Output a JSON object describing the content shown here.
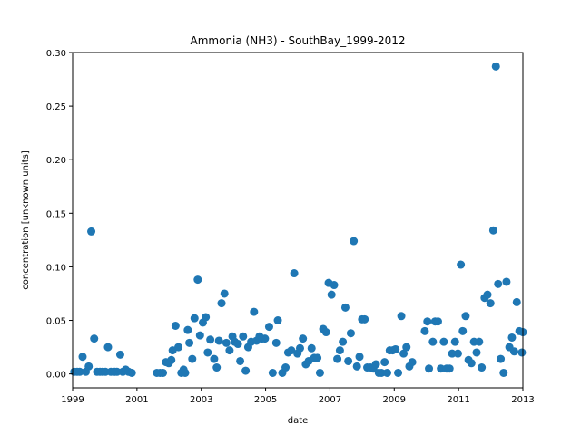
{
  "chart_data": {
    "type": "scatter",
    "title": "Ammonia (NH3) - SouthBay_1999-2012",
    "xlabel": "date",
    "ylabel": "concentration [unknown units]",
    "xlim": [
      1999,
      2013
    ],
    "ylim": [
      -0.013,
      0.3
    ],
    "xticks": [
      1999,
      2001,
      2003,
      2005,
      2007,
      2009,
      2011,
      2013
    ],
    "yticks": [
      0.0,
      0.05,
      0.1,
      0.15,
      0.2,
      0.25,
      0.3
    ],
    "ytick_labels": [
      "0.00",
      "0.05",
      "0.10",
      "0.15",
      "0.20",
      "0.25",
      "0.30"
    ],
    "grid": false,
    "legend": "none",
    "marker_color": "#1f77b4",
    "points": [
      [
        1999.05,
        0.002
      ],
      [
        1999.14,
        0.002
      ],
      [
        1999.22,
        0.002
      ],
      [
        1999.31,
        0.016
      ],
      [
        1999.41,
        0.002
      ],
      [
        1999.5,
        0.007
      ],
      [
        1999.58,
        0.133
      ],
      [
        1999.67,
        0.033
      ],
      [
        1999.76,
        0.002
      ],
      [
        1999.85,
        0.002
      ],
      [
        1999.93,
        0.002
      ],
      [
        2000.02,
        0.002
      ],
      [
        2000.1,
        0.025
      ],
      [
        2000.19,
        0.002
      ],
      [
        2000.3,
        0.002
      ],
      [
        2000.38,
        0.002
      ],
      [
        2000.48,
        0.018
      ],
      [
        2000.56,
        0.002
      ],
      [
        2000.65,
        0.004
      ],
      [
        2000.74,
        0.002
      ],
      [
        2000.84,
        0.001
      ],
      [
        2001.62,
        0.001
      ],
      [
        2001.72,
        0.001
      ],
      [
        2001.81,
        0.001
      ],
      [
        2001.9,
        0.011
      ],
      [
        2001.99,
        0.01
      ],
      [
        2002.07,
        0.013
      ],
      [
        2002.11,
        0.022
      ],
      [
        2002.2,
        0.045
      ],
      [
        2002.29,
        0.025
      ],
      [
        2002.38,
        0.001
      ],
      [
        2002.45,
        0.004
      ],
      [
        2002.5,
        0.001
      ],
      [
        2002.58,
        0.041
      ],
      [
        2002.63,
        0.029
      ],
      [
        2002.72,
        0.014
      ],
      [
        2002.79,
        0.052
      ],
      [
        2002.89,
        0.088
      ],
      [
        2002.96,
        0.036
      ],
      [
        2003.05,
        0.048
      ],
      [
        2003.14,
        0.053
      ],
      [
        2003.2,
        0.02
      ],
      [
        2003.28,
        0.032
      ],
      [
        2003.4,
        0.014
      ],
      [
        2003.48,
        0.006
      ],
      [
        2003.55,
        0.031
      ],
      [
        2003.63,
        0.066
      ],
      [
        2003.72,
        0.075
      ],
      [
        2003.78,
        0.029
      ],
      [
        2003.88,
        0.022
      ],
      [
        2003.97,
        0.035
      ],
      [
        2004.04,
        0.03
      ],
      [
        2004.14,
        0.028
      ],
      [
        2004.21,
        0.012
      ],
      [
        2004.3,
        0.035
      ],
      [
        2004.38,
        0.003
      ],
      [
        2004.46,
        0.025
      ],
      [
        2004.55,
        0.03
      ],
      [
        2004.64,
        0.058
      ],
      [
        2004.72,
        0.031
      ],
      [
        2004.81,
        0.035
      ],
      [
        2004.89,
        0.033
      ],
      [
        2004.98,
        0.033
      ],
      [
        2005.11,
        0.044
      ],
      [
        2005.22,
        0.001
      ],
      [
        2005.33,
        0.029
      ],
      [
        2005.38,
        0.05
      ],
      [
        2005.52,
        0.001
      ],
      [
        2005.62,
        0.006
      ],
      [
        2005.7,
        0.02
      ],
      [
        2005.8,
        0.022
      ],
      [
        2005.89,
        0.094
      ],
      [
        2005.99,
        0.019
      ],
      [
        2006.07,
        0.024
      ],
      [
        2006.16,
        0.033
      ],
      [
        2006.25,
        0.009
      ],
      [
        2006.34,
        0.012
      ],
      [
        2006.43,
        0.024
      ],
      [
        2006.51,
        0.015
      ],
      [
        2006.61,
        0.015
      ],
      [
        2006.69,
        0.001
      ],
      [
        2006.79,
        0.042
      ],
      [
        2006.88,
        0.039
      ],
      [
        2006.96,
        0.085
      ],
      [
        2007.05,
        0.074
      ],
      [
        2007.13,
        0.083
      ],
      [
        2007.23,
        0.014
      ],
      [
        2007.31,
        0.022
      ],
      [
        2007.4,
        0.03
      ],
      [
        2007.48,
        0.062
      ],
      [
        2007.57,
        0.012
      ],
      [
        2007.65,
        0.038
      ],
      [
        2007.74,
        0.124
      ],
      [
        2007.84,
        0.007
      ],
      [
        2007.92,
        0.016
      ],
      [
        2008.0,
        0.051
      ],
      [
        2008.08,
        0.051
      ],
      [
        2008.16,
        0.006
      ],
      [
        2008.26,
        0.006
      ],
      [
        2008.35,
        0.005
      ],
      [
        2008.43,
        0.009
      ],
      [
        2008.52,
        0.001
      ],
      [
        2008.6,
        0.001
      ],
      [
        2008.7,
        0.011
      ],
      [
        2008.78,
        0.001
      ],
      [
        2008.86,
        0.022
      ],
      [
        2008.95,
        0.022
      ],
      [
        2009.04,
        0.023
      ],
      [
        2009.12,
        0.001
      ],
      [
        2009.22,
        0.054
      ],
      [
        2009.29,
        0.019
      ],
      [
        2009.38,
        0.025
      ],
      [
        2009.47,
        0.007
      ],
      [
        2009.56,
        0.011
      ],
      [
        2009.95,
        0.04
      ],
      [
        2010.03,
        0.049
      ],
      [
        2010.08,
        0.005
      ],
      [
        2010.2,
        0.03
      ],
      [
        2010.27,
        0.049
      ],
      [
        2010.36,
        0.049
      ],
      [
        2010.45,
        0.005
      ],
      [
        2010.54,
        0.03
      ],
      [
        2010.63,
        0.005
      ],
      [
        2010.72,
        0.005
      ],
      [
        2010.8,
        0.019
      ],
      [
        2010.89,
        0.03
      ],
      [
        2010.98,
        0.019
      ],
      [
        2011.07,
        0.102
      ],
      [
        2011.13,
        0.04
      ],
      [
        2011.22,
        0.054
      ],
      [
        2011.31,
        0.013
      ],
      [
        2011.4,
        0.01
      ],
      [
        2011.48,
        0.03
      ],
      [
        2011.56,
        0.02
      ],
      [
        2011.64,
        0.03
      ],
      [
        2011.72,
        0.006
      ],
      [
        2011.81,
        0.071
      ],
      [
        2011.9,
        0.074
      ],
      [
        2011.99,
        0.066
      ],
      [
        2012.08,
        0.134
      ],
      [
        2012.16,
        0.287
      ],
      [
        2012.23,
        0.084
      ],
      [
        2012.31,
        0.014
      ],
      [
        2012.4,
        0.001
      ],
      [
        2012.49,
        0.086
      ],
      [
        2012.58,
        0.025
      ],
      [
        2012.66,
        0.034
      ],
      [
        2012.73,
        0.021
      ],
      [
        2012.81,
        0.067
      ],
      [
        2012.89,
        0.04
      ],
      [
        2012.97,
        0.02
      ],
      [
        2013.0,
        0.039
      ]
    ]
  }
}
